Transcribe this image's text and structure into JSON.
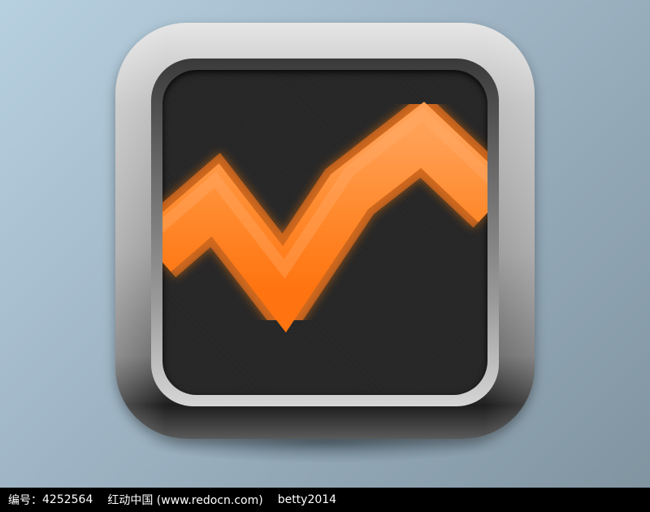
{
  "icon": {
    "name": "trend-line-app-icon",
    "frame_color": "#b0b0b0",
    "screen_color": "#252525",
    "line_color": "#ff8a2e",
    "line_glow_color": "#ff7a1a"
  },
  "caption": {
    "id_label": "编号：",
    "id_value": "4252564",
    "site": "红动中国 (www.redocn.com)",
    "author": "betty2014"
  }
}
